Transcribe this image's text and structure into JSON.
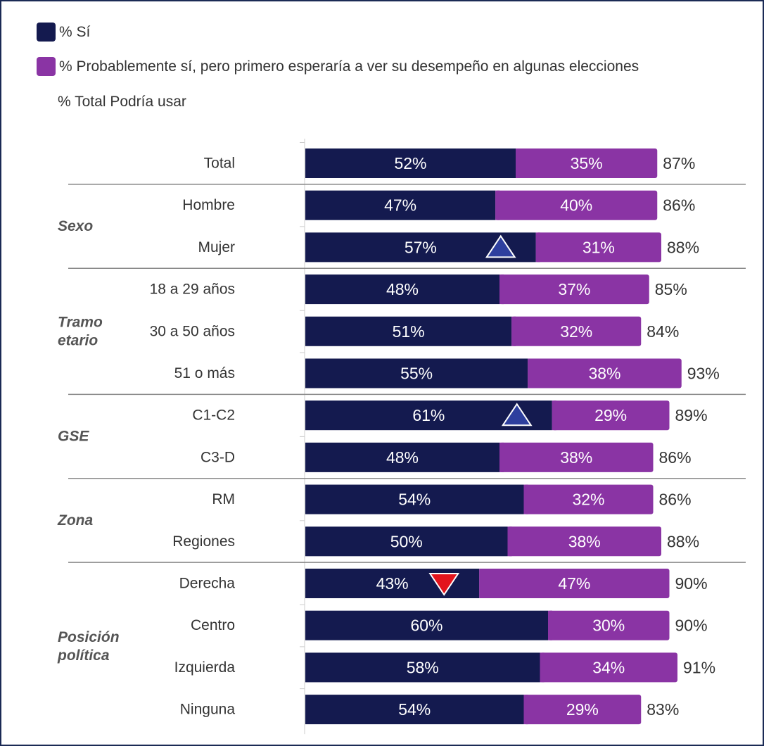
{
  "chart_data": {
    "type": "bar",
    "stacked": true,
    "orientation": "horizontal",
    "legend": [
      {
        "label": "% Sí",
        "color": "#141a4f"
      },
      {
        "label": "% Probablemente sí, pero primero esperaría a ver su desempeño en algunas elecciones",
        "color": "#8a34a4"
      },
      {
        "label": "% Total Podría usar"
      }
    ],
    "groups": [
      {
        "label": "",
        "rows": [
          {
            "category": "Total",
            "si": "52%",
            "prob": "35%",
            "total": "87%",
            "si_value": 52,
            "prob_value": 35,
            "total_value": 87,
            "marker": ""
          }
        ]
      },
      {
        "label": "Sexo",
        "rows": [
          {
            "category": "Hombre",
            "si": "47%",
            "prob": "40%",
            "total": "86%",
            "si_value": 47,
            "prob_value": 40,
            "total_value": 86,
            "marker": ""
          },
          {
            "category": "Mujer",
            "si": "57%",
            "prob": "31%",
            "total": "88%",
            "si_value": 57,
            "prob_value": 31,
            "total_value": 88,
            "marker": "up"
          }
        ]
      },
      {
        "label": "Tramo etario",
        "rows": [
          {
            "category": "18 a 29 años",
            "si": "48%",
            "prob": "37%",
            "total": "85%",
            "si_value": 48,
            "prob_value": 37,
            "total_value": 85,
            "marker": ""
          },
          {
            "category": "30 a 50 años",
            "si": "51%",
            "prob": "32%",
            "total": "84%",
            "si_value": 51,
            "prob_value": 32,
            "total_value": 84,
            "marker": ""
          },
          {
            "category": "51 o más",
            "si": "55%",
            "prob": "38%",
            "total": "93%",
            "si_value": 55,
            "prob_value": 38,
            "total_value": 93,
            "marker": ""
          }
        ]
      },
      {
        "label": "GSE",
        "rows": [
          {
            "category": "C1-C2",
            "si": "61%",
            "prob": "29%",
            "total": "89%",
            "si_value": 61,
            "prob_value": 29,
            "total_value": 89,
            "marker": "up"
          },
          {
            "category": "C3-D",
            "si": "48%",
            "prob": "38%",
            "total": "86%",
            "si_value": 48,
            "prob_value": 38,
            "total_value": 86,
            "marker": ""
          }
        ]
      },
      {
        "label": "Zona",
        "rows": [
          {
            "category": "RM",
            "si": "54%",
            "prob": "32%",
            "total": "86%",
            "si_value": 54,
            "prob_value": 32,
            "total_value": 86,
            "marker": ""
          },
          {
            "category": "Regiones",
            "si": "50%",
            "prob": "38%",
            "total": "88%",
            "si_value": 50,
            "prob_value": 38,
            "total_value": 88,
            "marker": ""
          }
        ]
      },
      {
        "label": "Posición política",
        "rows": [
          {
            "category": "Derecha",
            "si": "43%",
            "prob": "47%",
            "total": "90%",
            "si_value": 43,
            "prob_value": 47,
            "total_value": 90,
            "marker": "down"
          },
          {
            "category": "Centro",
            "si": "60%",
            "prob": "30%",
            "total": "90%",
            "si_value": 60,
            "prob_value": 30,
            "total_value": 90,
            "marker": ""
          },
          {
            "category": "Izquierda",
            "si": "58%",
            "prob": "34%",
            "total": "91%",
            "si_value": 58,
            "prob_value": 34,
            "total_value": 91,
            "marker": ""
          },
          {
            "category": "Ninguna",
            "si": "54%",
            "prob": "29%",
            "total": "83%",
            "si_value": 54,
            "prob_value": 29,
            "total_value": 83,
            "marker": ""
          }
        ]
      }
    ],
    "colors": {
      "si": "#141a4f",
      "prob": "#8a34a4",
      "marker_up": "#2e3f9e",
      "marker_down": "#e3141c",
      "text": "#333333",
      "separator": "#888888"
    },
    "xlim": [
      0,
      100
    ],
    "grid": false
  }
}
